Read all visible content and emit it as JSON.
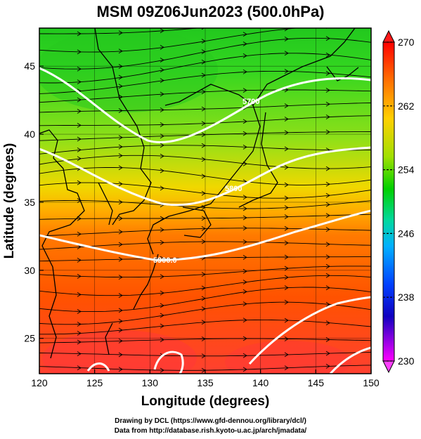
{
  "title": "MSM 09Z06Jun2023 (500.0hPa)",
  "x_axis": {
    "label": "Longitude (degrees)",
    "ticks": [
      "120",
      "125",
      "130",
      "135",
      "140",
      "145",
      "150"
    ]
  },
  "y_axis": {
    "label": "Latitude  (degrees)",
    "ticks": [
      "25",
      "30",
      "35",
      "40",
      "45"
    ]
  },
  "colorbar": {
    "ticks": [
      "270",
      "262",
      "254",
      "246",
      "238",
      "230"
    ]
  },
  "contour_labels": [
    "5900.0",
    "5800",
    "5700"
  ],
  "credits": [
    "Drawing by DCL (https://www.gfd-dennou.org/library/dcl/)",
    "Data from http://database.rish.kyoto-u.ac.jp/arch/jmadata/"
  ],
  "map_extent": {
    "lon": [
      120,
      150
    ],
    "lat": [
      22.4,
      47.8
    ]
  },
  "colors": {
    "cold": "#00d800",
    "mid": "#f2d000",
    "warm": "#ff5a00",
    "hot": "#ff3c28",
    "contour": "#ffffff"
  }
}
